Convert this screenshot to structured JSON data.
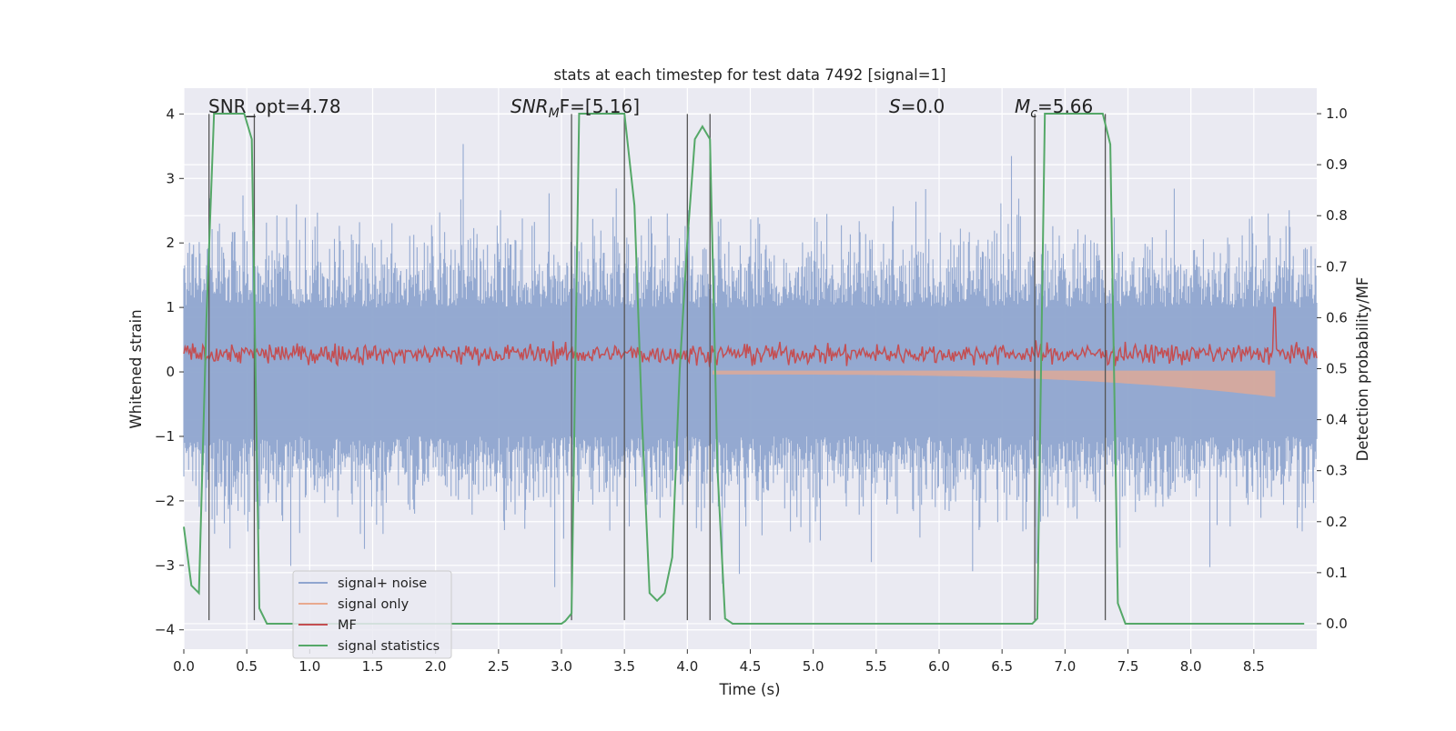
{
  "chart_data": {
    "type": "line",
    "title": "stats at each timestep for test data 7492 [signal=1]",
    "xlabel": "Time (s)",
    "ylabel_left": "Whitened strain",
    "ylabel_right": "Detection probability/MF",
    "xlim": [
      0.0,
      9.0
    ],
    "ylim_left": [
      -4.3,
      4.4
    ],
    "ylim_right": [
      -0.05,
      1.05
    ],
    "x_ticks": [
      "0.0",
      "0.5",
      "1.0",
      "1.5",
      "2.0",
      "2.5",
      "3.0",
      "3.5",
      "4.0",
      "4.5",
      "5.0",
      "5.5",
      "6.0",
      "6.5",
      "7.0",
      "7.5",
      "8.0",
      "8.5"
    ],
    "y_ticks_left": [
      "-4",
      "-3",
      "-2",
      "-1",
      "0",
      "1",
      "2",
      "3",
      "4"
    ],
    "y_ticks_right": [
      "0.0",
      "0.1",
      "0.2",
      "0.3",
      "0.4",
      "0.5",
      "0.6",
      "0.7",
      "0.8",
      "0.9",
      "1.0"
    ],
    "grid": true,
    "legend_position": "lower-left",
    "annotations": {
      "snr_opt": "SNR_opt=4.78",
      "snr_mf_main": "SNR",
      "snr_mf_sub": "M",
      "snr_mf_rest": "F=[5.16]",
      "s_main": "S",
      "s_rest": "=0.0",
      "mc_main": "M",
      "mc_sub": "c",
      "mc_rest": "=5.66"
    },
    "series": [
      {
        "name": "signal+ noise",
        "color": "#8fa5cf",
        "description_axis": "left",
        "x_range": [
          0.0,
          9.0
        ],
        "y_range": [
          -3.9,
          4.0
        ]
      },
      {
        "name": "signal only",
        "color": "#e8a98f",
        "description_axis": "left",
        "x_range": [
          4.2,
          8.67
        ],
        "y_range": [
          -0.45,
          0.05
        ]
      },
      {
        "name": "MF",
        "color": "#c44e52",
        "description_axis": "left",
        "x_range": [
          0.0,
          9.0
        ],
        "y_range": [
          0.05,
          1.0
        ]
      },
      {
        "name": "signal statistics",
        "color": "#55a868",
        "axis": "right",
        "x": [
          0.0,
          0.06,
          0.12,
          0.18,
          0.24,
          0.3,
          0.36,
          0.42,
          0.48,
          0.54,
          0.6,
          0.66,
          0.72,
          1.0,
          2.0,
          3.0,
          3.03,
          3.08,
          3.14,
          3.5,
          3.58,
          3.64,
          3.7,
          3.76,
          3.82,
          3.88,
          3.94,
          4.0,
          4.06,
          4.12,
          4.18,
          4.24,
          4.3,
          4.36,
          5.0,
          6.0,
          6.74,
          6.78,
          6.84,
          6.9,
          7.3,
          7.36,
          7.42,
          7.48,
          8.0,
          8.9
        ],
        "y": [
          0.19,
          0.075,
          0.06,
          0.6,
          1.0,
          1.0,
          1.0,
          1.0,
          1.0,
          0.95,
          0.03,
          0.0,
          0.0,
          0.0,
          0.0,
          0.0,
          0.005,
          0.02,
          1.0,
          1.0,
          0.82,
          0.4,
          0.06,
          0.045,
          0.06,
          0.13,
          0.5,
          0.75,
          0.95,
          0.975,
          0.95,
          0.3,
          0.01,
          0.0,
          0.0,
          0.0,
          0.0,
          0.01,
          1.0,
          1.0,
          1.0,
          0.94,
          0.04,
          0.0,
          0.0,
          0.0
        ]
      }
    ],
    "vertical_markers": [
      0.2,
      0.56,
      3.08,
      3.5,
      4.0,
      4.18,
      6.76,
      7.32
    ]
  }
}
